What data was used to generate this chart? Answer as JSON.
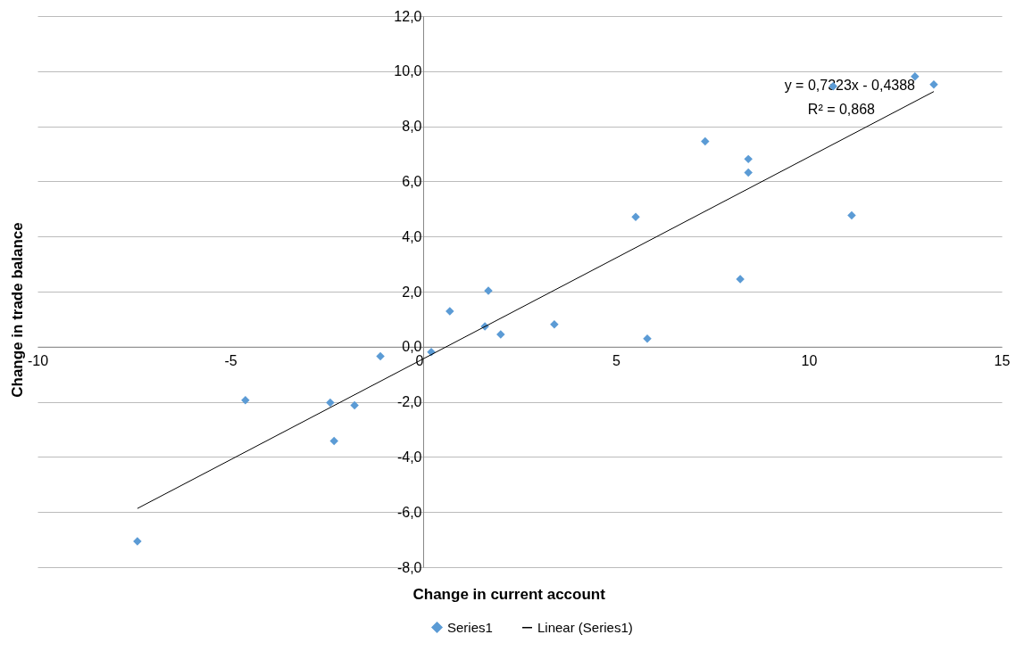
{
  "chart_data": {
    "type": "scatter",
    "xlabel": "Change in current account",
    "ylabel": "Change in trade balance",
    "xlim": [
      -10,
      15
    ],
    "xticks": [
      -10,
      -5,
      0,
      5,
      10,
      15
    ],
    "ylim": [
      -8,
      12
    ],
    "yticks": [
      {
        "value": -8,
        "label": "-8,0"
      },
      {
        "value": -6,
        "label": "-6,0"
      },
      {
        "value": -4,
        "label": "-4,0"
      },
      {
        "value": -2,
        "label": "-2,0"
      },
      {
        "value": 0,
        "label": "0,0"
      },
      {
        "value": 2,
        "label": "2,0"
      },
      {
        "value": 4,
        "label": "4,0"
      },
      {
        "value": 6,
        "label": "6,0"
      },
      {
        "value": 8,
        "label": "8,0"
      },
      {
        "value": 10,
        "label": "10,0"
      },
      {
        "value": 12,
        "label": "12,0"
      }
    ],
    "grid": "y",
    "legend": "bottom",
    "series": [
      {
        "name": "Series1",
        "marker": "diamond",
        "color": "#5b9bd5",
        "x": [
          -7.41,
          -4.61,
          -2.41,
          -2.31,
          -1.78,
          -1.11,
          0.21,
          0.69,
          1.6,
          1.69,
          2.01,
          3.4,
          5.51,
          5.81,
          7.31,
          8.22,
          8.43,
          8.43,
          10.63,
          11.11,
          12.75,
          13.24
        ],
        "values": [
          -7.06,
          -1.94,
          -2.03,
          -3.42,
          -2.13,
          -0.35,
          -0.19,
          1.29,
          0.74,
          2.03,
          0.45,
          0.81,
          4.71,
          0.29,
          7.45,
          2.45,
          6.81,
          6.32,
          9.45,
          4.77,
          9.81,
          9.52
        ]
      },
      {
        "name": "Linear (Series1)",
        "type": "line",
        "color": "#000000",
        "x": [
          -7.41,
          13.24
        ],
        "values": [
          -5.87,
          9.26
        ]
      }
    ],
    "annotations": [
      "y = 0,7323x - 0,4388",
      "R² = 0,868"
    ]
  }
}
